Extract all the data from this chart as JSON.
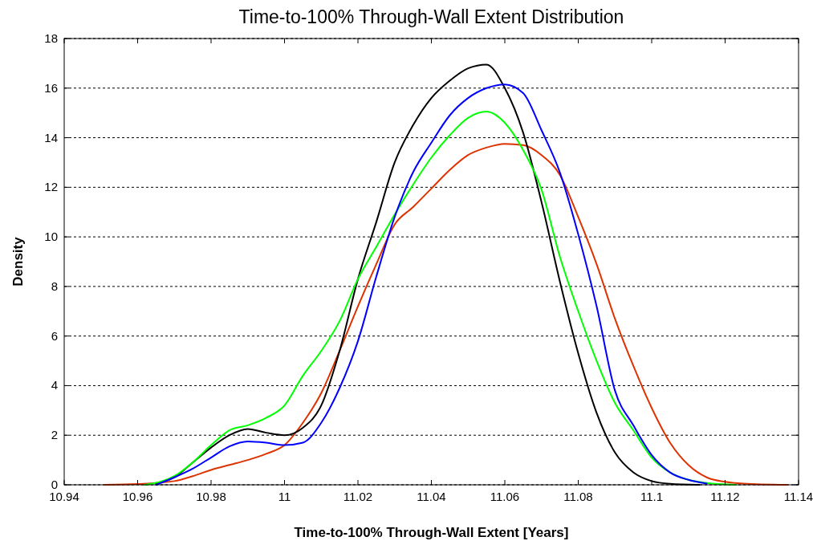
{
  "chart_data": {
    "type": "line",
    "title": "Time-to-100% Through-Wall Extent Distribution",
    "xlabel": "Time-to-100% Through-Wall Extent [Years]",
    "ylabel": "Density",
    "xlim": [
      10.94,
      11.14
    ],
    "xticks": [
      10.94,
      10.96,
      10.98,
      11,
      11.02,
      11.04,
      11.06,
      11.08,
      11.1,
      11.12,
      11.14
    ],
    "ylim": [
      0,
      18
    ],
    "yticks": [
      0,
      2,
      4,
      6,
      8,
      10,
      12,
      14,
      16,
      18
    ],
    "grid": "y",
    "marker": "none",
    "line_style": "solid",
    "series": [
      {
        "color": "#dd3300",
        "x": [
          10.951,
          10.96,
          10.97,
          10.975,
          10.98,
          10.985,
          10.99,
          10.995,
          11,
          11.005,
          11.01,
          11.015,
          11.02,
          11.025,
          11.03,
          11.035,
          11.04,
          11.045,
          11.05,
          11.055,
          11.06,
          11.065,
          11.07,
          11.075,
          11.08,
          11.085,
          11.09,
          11.095,
          11.1,
          11.105,
          11.11,
          11.115,
          11.12,
          11.125,
          11.137
        ],
        "values": [
          0,
          0.03,
          0.15,
          0.35,
          0.6,
          0.8,
          1,
          1.25,
          1.6,
          2.5,
          3.7,
          5.4,
          7.2,
          8.9,
          10.5,
          11.2,
          11.95,
          12.7,
          13.3,
          13.6,
          13.75,
          13.7,
          13.3,
          12.5,
          10.8,
          8.9,
          6.7,
          4.8,
          3.1,
          1.7,
          0.8,
          0.3,
          0.12,
          0.05,
          0
        ]
      },
      {
        "color": "#000000",
        "x": [
          10.965,
          10.97,
          10.975,
          10.98,
          10.985,
          10.99,
          10.995,
          11,
          11.005,
          11.01,
          11.015,
          11.02,
          11.025,
          11.03,
          11.035,
          11.04,
          11.045,
          11.05,
          11.055,
          11.06,
          11.065,
          11.07,
          11.075,
          11.08,
          11.085,
          11.09,
          11.095,
          11.1,
          11.105,
          11.113
        ],
        "values": [
          0.05,
          0.3,
          0.9,
          1.5,
          2,
          2.25,
          2.1,
          2,
          2.3,
          3.2,
          5.4,
          8.3,
          10.6,
          13,
          14.5,
          15.6,
          16.3,
          16.8,
          16.95,
          16,
          14.2,
          11.4,
          8.2,
          5.3,
          2.9,
          1.3,
          0.5,
          0.15,
          0.04,
          0
        ]
      },
      {
        "color": "#00ff00",
        "x": [
          10.962,
          10.97,
          10.975,
          10.98,
          10.985,
          10.99,
          10.995,
          11,
          11.005,
          11.01,
          11.015,
          11.02,
          11.025,
          11.03,
          11.035,
          11.04,
          11.045,
          11.05,
          11.055,
          11.06,
          11.065,
          11.07,
          11.075,
          11.08,
          11.085,
          11.09,
          11.095,
          11.1,
          11.105,
          11.11,
          11.115,
          11.123
        ],
        "values": [
          0,
          0.35,
          0.9,
          1.6,
          2.2,
          2.4,
          2.7,
          3.2,
          4.4,
          5.4,
          6.6,
          8.3,
          9.6,
          10.9,
          12.1,
          13.2,
          14.1,
          14.8,
          15.05,
          14.6,
          13.5,
          11.9,
          9.2,
          7,
          5,
          3.3,
          2.2,
          1.1,
          0.5,
          0.2,
          0.07,
          0
        ]
      },
      {
        "color": "#0000ff",
        "x": [
          10.965,
          10.97,
          10.975,
          10.98,
          10.985,
          10.99,
          10.995,
          11,
          11.005,
          11.01,
          11.015,
          11.02,
          11.025,
          11.03,
          11.035,
          11.04,
          11.045,
          11.05,
          11.055,
          11.06,
          11.065,
          11.07,
          11.075,
          11.08,
          11.085,
          11.09,
          11.095,
          11.1,
          11.105,
          11.11,
          11.115
        ],
        "values": [
          0,
          0.3,
          0.65,
          1.1,
          1.55,
          1.75,
          1.7,
          1.6,
          1.7,
          2.5,
          3.9,
          5.8,
          8.4,
          10.8,
          12.6,
          13.8,
          14.9,
          15.6,
          16,
          16.15,
          15.8,
          14.3,
          12.6,
          10.1,
          7.2,
          3.8,
          2.4,
          1.2,
          0.5,
          0.2,
          0.05
        ]
      }
    ]
  }
}
